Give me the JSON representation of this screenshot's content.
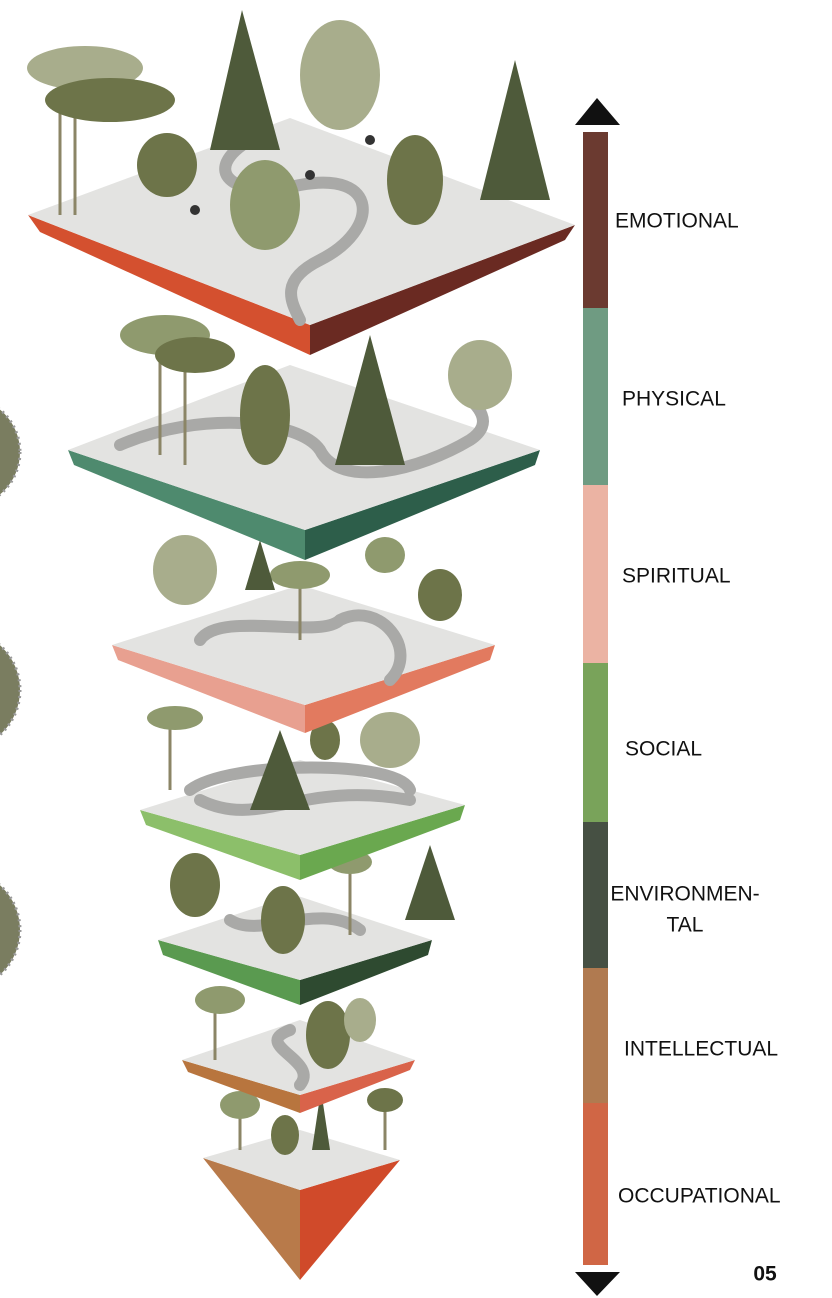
{
  "scale": {
    "labels": [
      "EMOTIONAL",
      "PHYSICAL",
      "SPIRITUAL",
      "SOCIAL",
      [
        "ENVIRONMEN-",
        "TAL"
      ],
      "INTELLECTUAL",
      "OCCUPATIONAL"
    ]
  },
  "page_number": "05"
}
